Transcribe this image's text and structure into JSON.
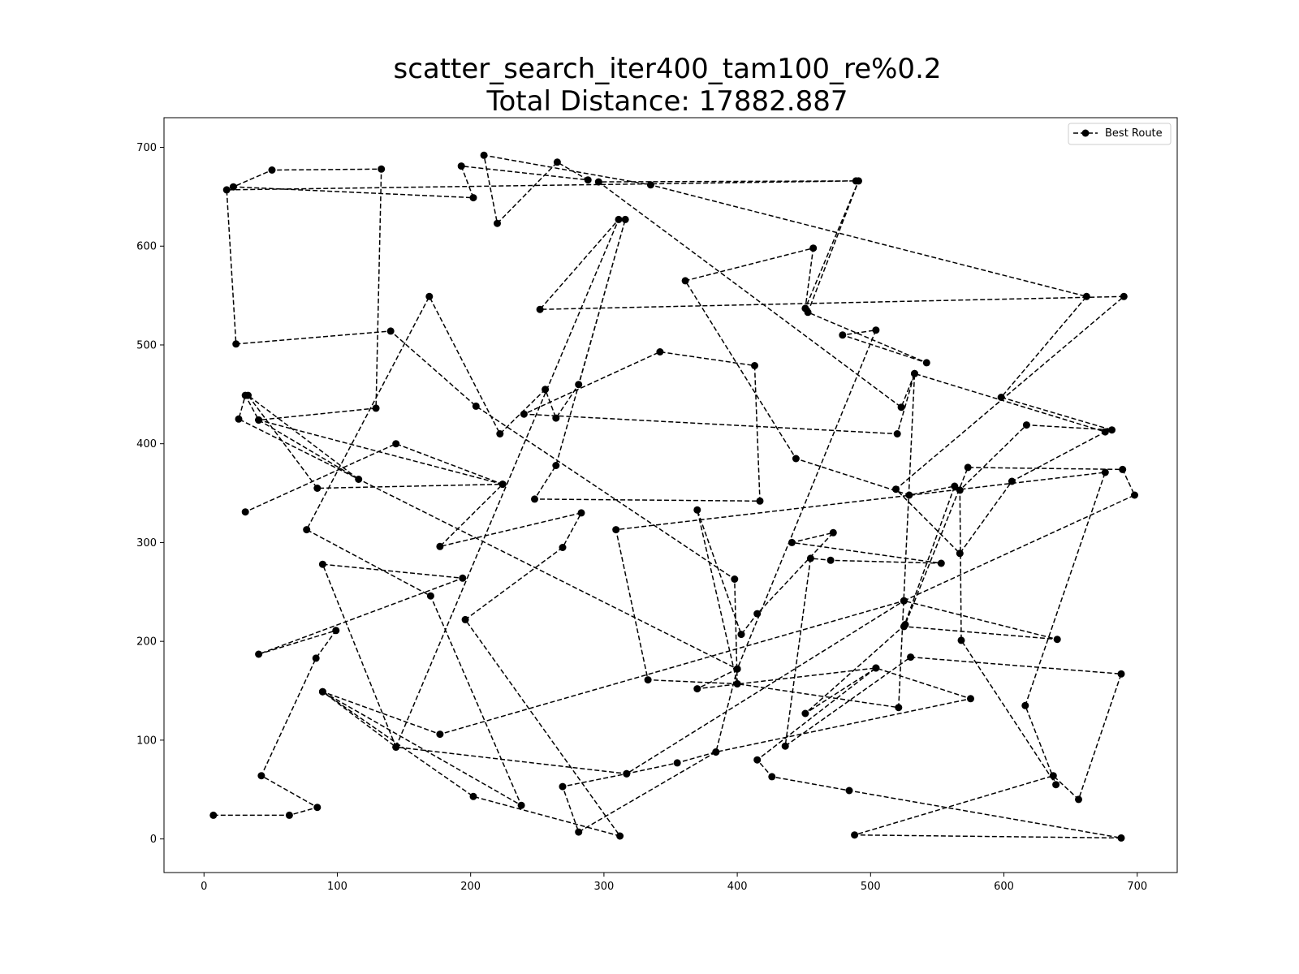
{
  "chart_data": {
    "type": "line",
    "title_lines": [
      "scatter_search_iter400_tam100_re%0.2",
      "Total Distance: 17882.887"
    ],
    "xlabel": "",
    "ylabel": "",
    "xlim": [
      -30,
      730
    ],
    "ylim": [
      -34,
      730
    ],
    "xticks": [
      0,
      100,
      200,
      300,
      400,
      500,
      600,
      700
    ],
    "yticks": [
      0,
      100,
      200,
      300,
      400,
      500,
      600,
      700
    ],
    "grid": false,
    "legend_position": "top-right",
    "series": [
      {
        "name": "Best Route",
        "color": "#000000",
        "line_style": "dashed",
        "marker": "circle",
        "points": [
          [
            7,
            24
          ],
          [
            64,
            24
          ],
          [
            85,
            32
          ],
          [
            43,
            64
          ],
          [
            84,
            183
          ],
          [
            99,
            211
          ],
          [
            41,
            187
          ],
          [
            194,
            264
          ],
          [
            89,
            278
          ],
          [
            144,
            93
          ],
          [
            317,
            66
          ],
          [
            269,
            53
          ],
          [
            281,
            7
          ],
          [
            384,
            88
          ],
          [
            575,
            142
          ],
          [
            504,
            173
          ],
          [
            451,
            127
          ],
          [
            526,
            217
          ],
          [
            573,
            376
          ],
          [
            689,
            374
          ],
          [
            698,
            348
          ],
          [
            525,
            241
          ],
          [
            640,
            202
          ],
          [
            525,
            215
          ],
          [
            563,
            357
          ],
          [
            529,
            348
          ],
          [
            444,
            385
          ],
          [
            361,
            565
          ],
          [
            457,
            598
          ],
          [
            451,
            537
          ],
          [
            491,
            666
          ],
          [
            453,
            533
          ],
          [
            542,
            482
          ],
          [
            479,
            510
          ],
          [
            504,
            515
          ],
          [
            400,
            172
          ],
          [
            370,
            152
          ],
          [
            504,
            173
          ],
          [
            415,
            80
          ],
          [
            426,
            63
          ],
          [
            484,
            49
          ],
          [
            688,
            1
          ],
          [
            488,
            4
          ],
          [
            637,
            64
          ],
          [
            656,
            40
          ],
          [
            688,
            167
          ],
          [
            530,
            184
          ],
          [
            436,
            94
          ],
          [
            455,
            284
          ],
          [
            470,
            282
          ],
          [
            553,
            279
          ],
          [
            441,
            300
          ],
          [
            472,
            310
          ],
          [
            415,
            228
          ],
          [
            403,
            207
          ],
          [
            370,
            333
          ],
          [
            400,
            157
          ],
          [
            333,
            161
          ],
          [
            309,
            313
          ],
          [
            676,
            371
          ],
          [
            616,
            135
          ],
          [
            639,
            55
          ],
          [
            568,
            201
          ],
          [
            567,
            353
          ],
          [
            617,
            419
          ],
          [
            681,
            414
          ],
          [
            598,
            447
          ],
          [
            662,
            549
          ],
          [
            335,
            662
          ],
          [
            210,
            692
          ],
          [
            220,
            623
          ],
          [
            265,
            685
          ],
          [
            288,
            667
          ],
          [
            193,
            681
          ],
          [
            202,
            649
          ],
          [
            22,
            660
          ],
          [
            51,
            677
          ],
          [
            133,
            678
          ],
          [
            129,
            436
          ],
          [
            41,
            424
          ],
          [
            224,
            359
          ],
          [
            177,
            296
          ],
          [
            283,
            330
          ],
          [
            269,
            295
          ],
          [
            196,
            222
          ],
          [
            312,
            3
          ],
          [
            202,
            43
          ],
          [
            89,
            149
          ],
          [
            238,
            34
          ],
          [
            170,
            246
          ],
          [
            77,
            313
          ],
          [
            169,
            549
          ],
          [
            222,
            410
          ],
          [
            256,
            455
          ],
          [
            264,
            426
          ],
          [
            281,
            460
          ],
          [
            316,
            627
          ],
          [
            264,
            378
          ],
          [
            248,
            344
          ],
          [
            417,
            342
          ],
          [
            413,
            479
          ],
          [
            342,
            493
          ],
          [
            240,
            430
          ],
          [
            520,
            410
          ],
          [
            533,
            471
          ],
          [
            523,
            437
          ],
          [
            296,
            665
          ],
          [
            489,
            666
          ],
          [
            17,
            657
          ],
          [
            24,
            501
          ],
          [
            140,
            514
          ],
          [
            204,
            438
          ],
          [
            398,
            263
          ],
          [
            400,
            157
          ],
          [
            521,
            133
          ],
          [
            533,
            471
          ],
          [
            676,
            412
          ],
          [
            606,
            362
          ],
          [
            567,
            289
          ],
          [
            519,
            354
          ],
          [
            690,
            549
          ],
          [
            252,
            536
          ],
          [
            311,
            627
          ],
          [
            144,
            93
          ],
          [
            89,
            149
          ],
          [
            177,
            106
          ],
          [
            525,
            241
          ],
          [
            317,
            66
          ],
          [
            355,
            77
          ],
          [
            384,
            88
          ],
          [
            400,
            172
          ],
          [
            26,
            425
          ],
          [
            31,
            449
          ],
          [
            41,
            424
          ],
          [
            116,
            364
          ],
          [
            33,
            449
          ],
          [
            85,
            355
          ],
          [
            224,
            359
          ],
          [
            144,
            400
          ],
          [
            31,
            331
          ]
        ]
      }
    ]
  }
}
